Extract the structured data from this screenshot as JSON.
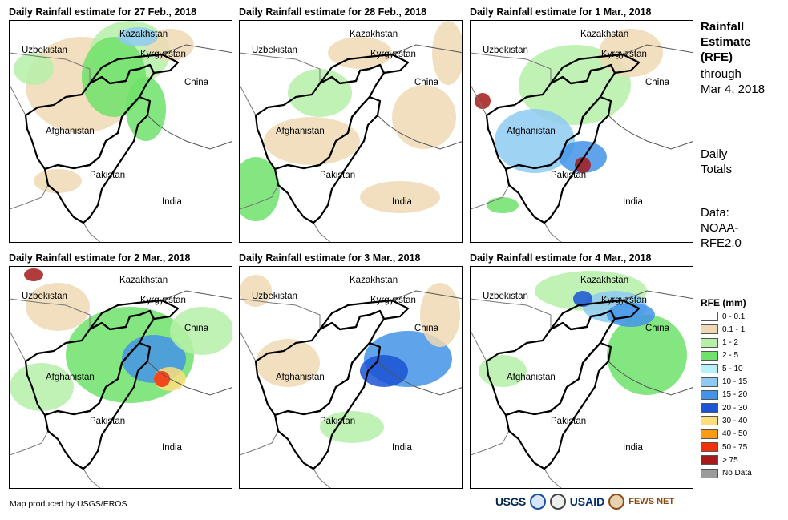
{
  "panels": [
    {
      "title": "Daily Rainfall estimate for 27 Feb., 2018",
      "labels": {
        "kazakhstan": "Kazakhstan",
        "kyrgyzstan": "Kyrgyzstan",
        "uzbekistan": "Uzbekistan",
        "china": "China",
        "afghanistan": "Afghanistan",
        "pakistan": "Pakistan",
        "india": "India"
      }
    },
    {
      "title": "Daily Rainfall estimate for 28 Feb., 2018",
      "labels": {
        "kazakhstan": "Kazakhstan",
        "kyrgyzstan": "Kyrgyzstan",
        "uzbekistan": "Uzbekistan",
        "china": "China",
        "afghanistan": "Afghanistan",
        "pakistan": "Pakistan",
        "india": "India"
      }
    },
    {
      "title": "Daily Rainfall estimate for 1 Mar., 2018",
      "labels": {
        "kazakhstan": "Kazakhstan",
        "kyrgyzstan": "Kyrgyzstan",
        "uzbekistan": "Uzbekistan",
        "china": "China",
        "afghanistan": "Afghanistan",
        "pakistan": "Pakistan",
        "india": "India"
      }
    },
    {
      "title": "Daily Rainfall estimate for 2 Mar., 2018",
      "labels": {
        "kazakhstan": "Kazakhstan",
        "kyrgyzstan": "Kyrgyzstan",
        "uzbekistan": "Uzbekistan",
        "china": "China",
        "afghanistan": "Afghanistan",
        "pakistan": "Pakistan",
        "india": "India"
      }
    },
    {
      "title": "Daily Rainfall estimate for 3 Mar., 2018",
      "labels": {
        "kazakhstan": "Kazakhstan",
        "kyrgyzstan": "Kyrgyzstan",
        "uzbekistan": "Uzbekistan",
        "china": "China",
        "afghanistan": "Afghanistan",
        "pakistan": "Pakistan",
        "india": "India"
      }
    },
    {
      "title": "Daily Rainfall estimate for 4 Mar., 2018",
      "labels": {
        "kazakhstan": "Kazakhstan",
        "kyrgyzstan": "Kyrgyzstan",
        "uzbekistan": "Uzbekistan",
        "china": "China",
        "afghanistan": "Afghanistan",
        "pakistan": "Pakistan",
        "india": "India"
      }
    }
  ],
  "side": {
    "title_lines": [
      "Rainfall",
      "Estimate",
      "(RFE)"
    ],
    "through_lines": [
      "through",
      "Mar 4, 2018"
    ],
    "totals_lines": [
      "Daily",
      "Totals"
    ],
    "data_lines": [
      "Data:",
      "NOAA-",
      "RFE2.0"
    ]
  },
  "legend": {
    "title": "RFE (mm)",
    "items": [
      {
        "label": "0 - 0.1",
        "color": "#ffffff"
      },
      {
        "label": "0.1 - 1",
        "color": "#efd9b4"
      },
      {
        "label": "1 - 2",
        "color": "#b6f0a8"
      },
      {
        "label": "2 - 5",
        "color": "#6ee26a"
      },
      {
        "label": "5 - 10",
        "color": "#b5f1f6"
      },
      {
        "label": "10 - 15",
        "color": "#8ecbf2"
      },
      {
        "label": "15 - 20",
        "color": "#4394e8"
      },
      {
        "label": "20 - 30",
        "color": "#1b54d4"
      },
      {
        "label": "30 - 40",
        "color": "#fcde7c"
      },
      {
        "label": "40 - 50",
        "color": "#f99b13"
      },
      {
        "label": "50 - 75",
        "color": "#f42f0b"
      },
      {
        "label": "> 75",
        "color": "#a51a1a"
      },
      {
        "label": "No Data",
        "color": "#9b9b9b"
      }
    ]
  },
  "footer": {
    "credit": "Map produced by USGS/EROS",
    "logos": {
      "usgs": "USGS",
      "usaid": "USAID",
      "fews": "FEWS NET"
    }
  }
}
